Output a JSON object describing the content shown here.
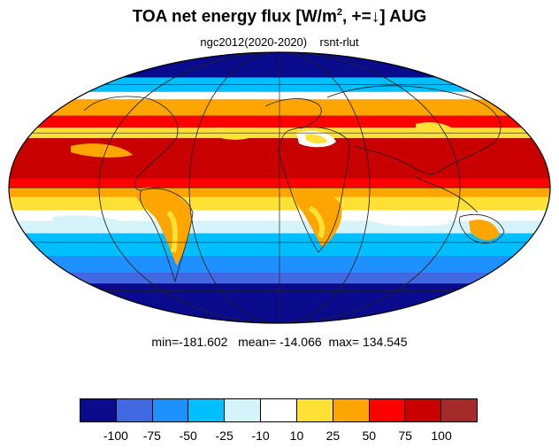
{
  "title": {
    "main": "TOA net energy flux  [W/m",
    "sup": "2",
    "rest": ", +=↓] AUG"
  },
  "subtitle": "ngc2012(2020-2020)    rsnt-rlut",
  "stats": {
    "text": "min=-181.602   mean= -14.066  max= 134.545",
    "min": -181.602,
    "mean": -14.066,
    "max": 134.545
  },
  "projection": "mollweide",
  "colorbar": {
    "colors": [
      "#0a0a8c",
      "#4169e1",
      "#1e90ff",
      "#00bfff",
      "#d4f4fa",
      "#ffffff",
      "#ffe135",
      "#ffa500",
      "#ff0000",
      "#c80000",
      "#a52a2a"
    ],
    "ticks": [
      "-100",
      "-75",
      "-50",
      "-25",
      "-10",
      "10",
      "25",
      "50",
      "75",
      "100"
    ]
  },
  "bands": [
    {
      "lat": [
        65,
        90
      ],
      "color": "#0a0a8c"
    },
    {
      "lat": [
        55,
        65
      ],
      "color": "#00bfff"
    },
    {
      "lat": [
        50,
        55
      ],
      "color": "#ffffff"
    },
    {
      "lat": [
        40,
        50
      ],
      "color": "#ffa500"
    },
    {
      "lat": [
        33,
        40
      ],
      "color": "#ff0000"
    },
    {
      "lat": [
        27,
        33
      ],
      "color": "#ffe135"
    },
    {
      "lat": [
        5,
        27
      ],
      "color": "#c80000"
    },
    {
      "lat": [
        0,
        5
      ],
      "color": "#ff0000"
    },
    {
      "lat": [
        -5,
        0
      ],
      "color": "#ffa500"
    },
    {
      "lat": [
        -12,
        -5
      ],
      "color": "#ffe135"
    },
    {
      "lat": [
        -18,
        -12
      ],
      "color": "#ffffff"
    },
    {
      "lat": [
        -25,
        -18
      ],
      "color": "#d4f4fa"
    },
    {
      "lat": [
        -38,
        -25
      ],
      "color": "#00bfff"
    },
    {
      "lat": [
        -48,
        -38
      ],
      "color": "#1e90ff"
    },
    {
      "lat": [
        -55,
        -48
      ],
      "color": "#4169e1"
    },
    {
      "lat": [
        -90,
        -55
      ],
      "color": "#0a0a8c"
    }
  ]
}
